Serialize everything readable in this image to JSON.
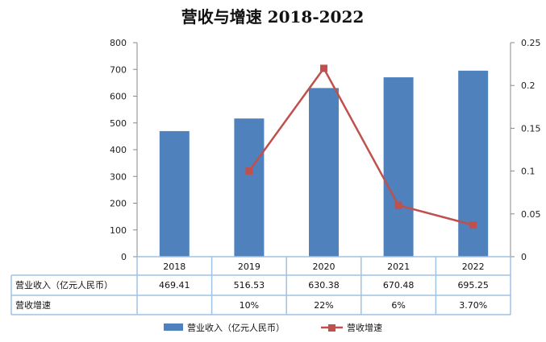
{
  "chart_data": {
    "type": "bar",
    "title": "营收与增速 2018-2022",
    "categories": [
      "2018",
      "2019",
      "2020",
      "2021",
      "2022"
    ],
    "series": [
      {
        "name": "营业收入（亿元人民币）",
        "type": "bar",
        "axis": "left",
        "values": [
          469.41,
          516.53,
          630.38,
          670.48,
          695.25
        ],
        "color": "#4f81bd"
      },
      {
        "name": "营收增速",
        "type": "line",
        "axis": "right",
        "values": [
          null,
          0.1,
          0.22,
          0.06,
          0.037
        ],
        "color": "#c0504d"
      }
    ],
    "y_left": {
      "min": 0,
      "max": 800,
      "ticks": [
        "0",
        "100",
        "200",
        "300",
        "400",
        "500",
        "600",
        "700",
        "800"
      ]
    },
    "y_right": {
      "min": 0,
      "max": 0.25,
      "ticks": [
        "0",
        "0.05",
        "0.1",
        "0.15",
        "0.2",
        "0.25"
      ]
    },
    "grid": false,
    "legend_position": "bottom",
    "table": {
      "rows": [
        {
          "label": "营业收入（亿元人民币）",
          "cells": [
            "469.41",
            "516.53",
            "630.38",
            "670.48",
            "695.25"
          ]
        },
        {
          "label": "营收增速",
          "cells": [
            "",
            "10%",
            "22%",
            "6%",
            "3.70%"
          ]
        }
      ]
    }
  }
}
